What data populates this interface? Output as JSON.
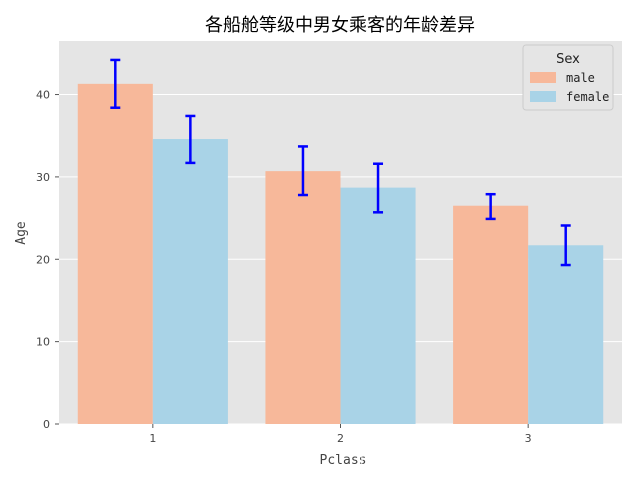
{
  "chart_data": {
    "type": "bar",
    "title": "各船舱等级中男女乘客的年龄差异",
    "xlabel": "Pclass",
    "ylabel": "Age",
    "categories": [
      "1",
      "2",
      "3"
    ],
    "series": [
      {
        "name": "male",
        "color": "#F7B89A",
        "values": [
          41.3,
          30.7,
          26.5
        ],
        "err_low": [
          38.4,
          27.8,
          24.9
        ],
        "err_high": [
          44.2,
          33.7,
          27.9
        ]
      },
      {
        "name": "female",
        "color": "#A9D3E7",
        "values": [
          34.6,
          28.7,
          21.7
        ],
        "err_low": [
          31.7,
          25.7,
          19.3
        ],
        "err_high": [
          37.4,
          31.6,
          24.1
        ]
      }
    ],
    "ylim": [
      0,
      46.5
    ],
    "yticks": [
      0,
      10,
      20,
      30,
      40
    ],
    "grid": true,
    "background": "#E5E5E5",
    "error_bar_color": "#0000FF",
    "legend": {
      "title": "Sex",
      "position": "top-right"
    }
  },
  "watermark": "https://blog.csdn.net/weixin_43425784"
}
